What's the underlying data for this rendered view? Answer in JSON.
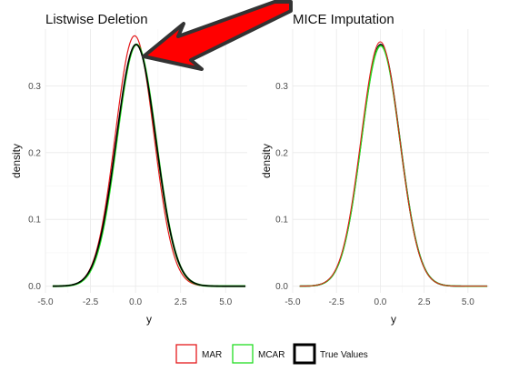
{
  "colors": {
    "mar": "#e41a1c",
    "mcar": "#22dd22",
    "true": "#000000",
    "arrow": "#ff0000",
    "arrow_outline": "#333333"
  },
  "legend": [
    {
      "key": "mar",
      "label": "MAR"
    },
    {
      "key": "mcar",
      "label": "MCAR"
    },
    {
      "key": "true",
      "label": "True Values"
    }
  ],
  "chart_data": [
    {
      "type": "line",
      "title": "Listwise Deletion",
      "xlabel": "y",
      "ylabel": "density",
      "xlim": [
        -5,
        6.2
      ],
      "ylim": [
        -0.01,
        0.385
      ],
      "xticks": [
        -5.0,
        -2.5,
        0.0,
        2.5,
        5.0
      ],
      "xtick_labels": [
        "-5.0",
        "-2.5",
        "0.0",
        "2.5",
        "5.0"
      ],
      "yticks": [
        0.0,
        0.1,
        0.2,
        0.3
      ],
      "ytick_labels": [
        "0.0",
        "0.1",
        "0.2",
        "0.3"
      ],
      "grid": true,
      "x_range": [
        -4.6,
        6.1
      ],
      "series": [
        {
          "name": "MAR",
          "color_key": "mar",
          "mean": -0.05,
          "sd": 1.07,
          "peak": 0.375,
          "width": 1.2
        },
        {
          "name": "MCAR",
          "color_key": "mcar",
          "mean": 0.05,
          "sd": 1.09,
          "peak": 0.362,
          "width": 2.2
        },
        {
          "name": "True Values",
          "color_key": "true",
          "mean": 0.03,
          "sd": 1.1,
          "peak": 0.362,
          "width": 1.6
        }
      ]
    },
    {
      "type": "line",
      "title": "MICE Imputation",
      "xlabel": "y",
      "ylabel": "density",
      "xlim": [
        -5,
        6.2
      ],
      "ylim": [
        -0.01,
        0.385
      ],
      "xticks": [
        -5.0,
        -2.5,
        0.0,
        2.5,
        5.0
      ],
      "xtick_labels": [
        "-5.0",
        "-2.5",
        "0.0",
        "2.5",
        "5.0"
      ],
      "yticks": [
        0.0,
        0.1,
        0.2,
        0.3
      ],
      "ytick_labels": [
        "0.0",
        "0.1",
        "0.2",
        "0.3"
      ],
      "grid": true,
      "x_range": [
        -4.6,
        6.1
      ],
      "series": [
        {
          "name": "True Values",
          "color_key": "true",
          "mean": 0.02,
          "sd": 1.1,
          "peak": 0.362,
          "width": 1.6
        },
        {
          "name": "MCAR",
          "color_key": "mcar",
          "mean": 0.02,
          "sd": 1.1,
          "peak": 0.36,
          "width": 1.6
        },
        {
          "name": "MAR",
          "color_key": "mar",
          "mean": 0.0,
          "sd": 1.1,
          "peak": 0.366,
          "width": 1.0
        }
      ]
    }
  ]
}
